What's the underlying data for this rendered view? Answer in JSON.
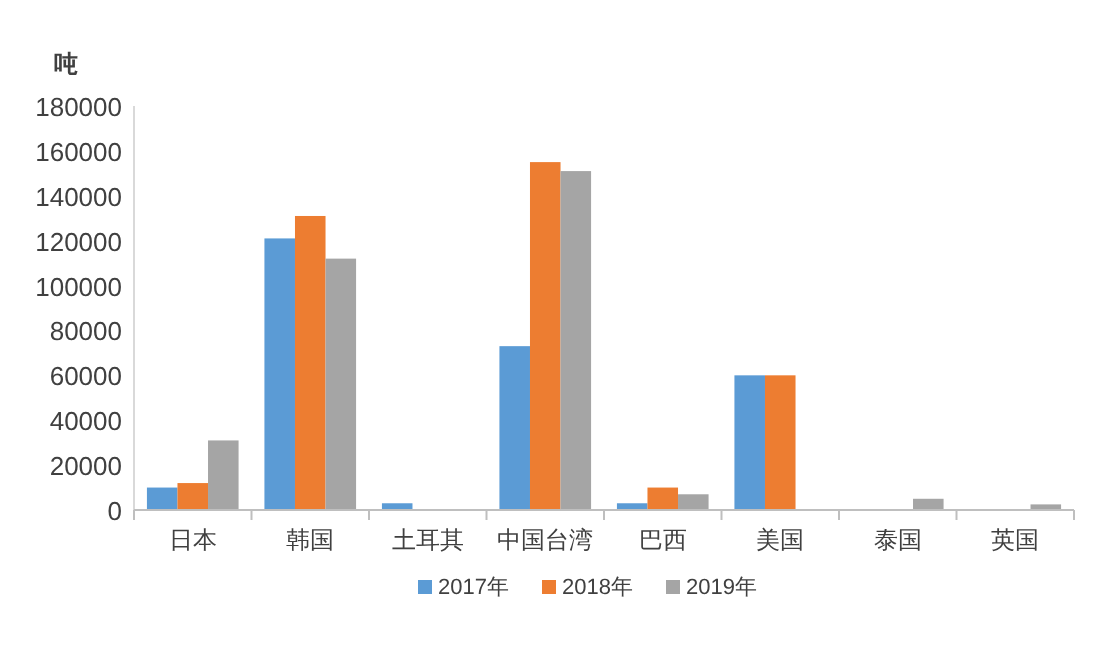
{
  "chart_data": {
    "type": "bar",
    "ylabel": "吨",
    "categories": [
      "日本",
      "韩国",
      "土耳其",
      "中国台湾",
      "巴西",
      "美国",
      "泰国",
      "英国"
    ],
    "series": [
      {
        "name": "2017年",
        "color": "#5b9bd5",
        "values": [
          10000,
          121000,
          3000,
          73000,
          3000,
          60000,
          0,
          0
        ]
      },
      {
        "name": "2018年",
        "color": "#ed7d31",
        "values": [
          12000,
          131000,
          0,
          155000,
          10000,
          60000,
          0,
          0
        ]
      },
      {
        "name": "2019年",
        "color": "#a5a5a5",
        "values": [
          31000,
          112000,
          0,
          151000,
          7000,
          0,
          5000,
          2500
        ]
      }
    ],
    "ylim": [
      0,
      180000
    ],
    "yticks": [
      0,
      20000,
      40000,
      60000,
      80000,
      100000,
      120000,
      140000,
      160000,
      180000
    ],
    "grid": false,
    "legend": "bottom"
  }
}
